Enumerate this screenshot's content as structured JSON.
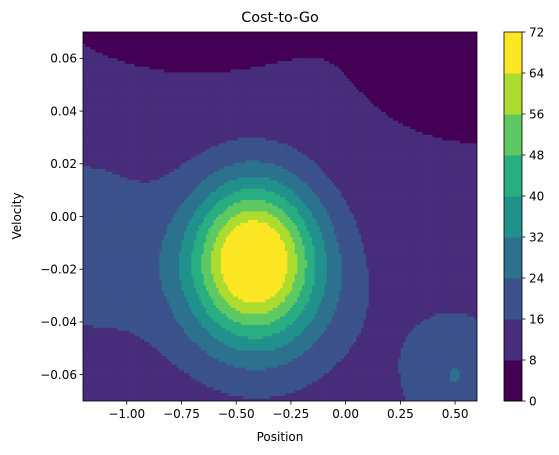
{
  "chart_data": {
    "type": "contour",
    "title": "Cost-to-Go",
    "xlabel": "Position",
    "ylabel": "Velocity",
    "xlim": [
      -1.2,
      0.6
    ],
    "ylim": [
      -0.07,
      0.07
    ],
    "xticks": [
      -1.0,
      -0.75,
      -0.5,
      -0.25,
      0.0,
      0.25,
      0.5
    ],
    "xtick_labels": [
      "−1.00",
      "−0.75",
      "−0.50",
      "−0.25",
      "0.00",
      "0.25",
      "0.50"
    ],
    "yticks": [
      -0.06,
      -0.04,
      -0.02,
      0.0,
      0.02,
      0.04,
      0.06
    ],
    "ytick_labels": [
      "−0.06",
      "−0.04",
      "−0.02",
      "0.00",
      "0.02",
      "0.04",
      "0.06"
    ],
    "colorbar": {
      "levels": [
        0,
        8,
        16,
        24,
        32,
        40,
        48,
        56,
        64,
        72
      ],
      "tick_labels": [
        "0",
        "8",
        "16",
        "24",
        "32",
        "40",
        "48",
        "56",
        "64",
        "72"
      ],
      "colors": [
        "#440154",
        "#472d7b",
        "#3b528b",
        "#2c728e",
        "#21918c",
        "#28ae80",
        "#5ec962",
        "#addc30",
        "#fde725"
      ]
    },
    "peak": {
      "position": -0.42,
      "velocity": -0.015,
      "value": 68
    },
    "colormap": "viridis"
  }
}
